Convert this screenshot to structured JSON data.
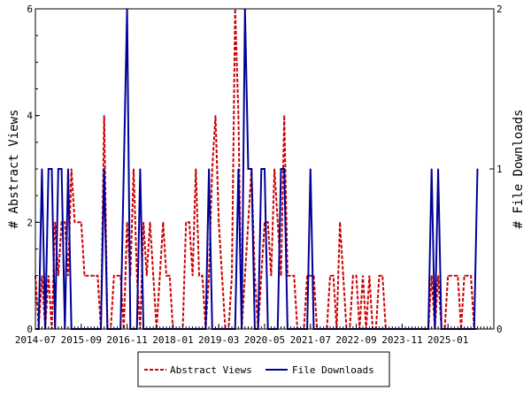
{
  "chart_data": {
    "type": "line",
    "ylabel_left": "# Abstract Views",
    "ylabel_right": "# File Downloads",
    "ylim_left": [
      0,
      6
    ],
    "ylim_right": [
      0,
      2
    ],
    "yticks_left": [
      "0",
      "2",
      "4",
      "6"
    ],
    "yticks_right": [
      "0",
      "1",
      "2"
    ],
    "x_range": [
      "2014-07",
      "2026-03"
    ],
    "xtick_labels": [
      "2014-07",
      "2015-09",
      "2016-11",
      "2018-01",
      "2019-03",
      "2020-05",
      "2021-07",
      "2022-09",
      "2023-11",
      "2025-01"
    ],
    "grid": false,
    "legend_position": "bottom-center",
    "colors": {
      "abstract_views": "#cc0000",
      "file_downloads": "#000099"
    },
    "series": [
      {
        "name": "Abstract Views",
        "axis": "left",
        "style": "dashed",
        "points": [
          [
            "2014-07",
            1
          ],
          [
            "2014-08",
            0
          ],
          [
            "2014-09",
            1
          ],
          [
            "2014-10",
            0
          ],
          [
            "2014-11",
            1
          ],
          [
            "2014-12",
            0
          ],
          [
            "2015-01",
            2
          ],
          [
            "2015-02",
            1
          ],
          [
            "2015-03",
            2
          ],
          [
            "2015-04",
            2
          ],
          [
            "2015-05",
            1
          ],
          [
            "2015-06",
            3
          ],
          [
            "2015-07",
            2
          ],
          [
            "2015-08",
            2
          ],
          [
            "2015-09",
            2
          ],
          [
            "2015-10",
            1
          ],
          [
            "2015-11",
            1
          ],
          [
            "2015-12",
            1
          ],
          [
            "2016-01",
            1
          ],
          [
            "2016-02",
            1
          ],
          [
            "2016-03",
            0
          ],
          [
            "2016-04",
            4
          ],
          [
            "2016-05",
            0
          ],
          [
            "2016-06",
            0
          ],
          [
            "2016-07",
            1
          ],
          [
            "2016-08",
            1
          ],
          [
            "2016-09",
            1
          ],
          [
            "2016-10",
            0
          ],
          [
            "2016-11",
            2
          ],
          [
            "2016-12",
            1
          ],
          [
            "2017-01",
            3
          ],
          [
            "2017-02",
            1
          ],
          [
            "2017-03",
            0
          ],
          [
            "2017-04",
            2
          ],
          [
            "2017-05",
            1
          ],
          [
            "2017-06",
            2
          ],
          [
            "2017-07",
            1
          ],
          [
            "2017-08",
            0
          ],
          [
            "2017-09",
            1
          ],
          [
            "2017-10",
            2
          ],
          [
            "2017-11",
            1
          ],
          [
            "2017-12",
            1
          ],
          [
            "2018-01",
            0
          ],
          [
            "2018-02",
            0
          ],
          [
            "2018-03",
            0
          ],
          [
            "2018-04",
            0
          ],
          [
            "2018-05",
            2
          ],
          [
            "2018-06",
            2
          ],
          [
            "2018-07",
            1
          ],
          [
            "2018-08",
            3
          ],
          [
            "2018-09",
            1
          ],
          [
            "2018-10",
            1
          ],
          [
            "2018-11",
            0
          ],
          [
            "2018-12",
            1
          ],
          [
            "2019-01",
            3
          ],
          [
            "2019-02",
            4
          ],
          [
            "2019-03",
            2
          ],
          [
            "2019-04",
            1
          ],
          [
            "2019-05",
            0
          ],
          [
            "2019-06",
            0
          ],
          [
            "2019-07",
            1
          ],
          [
            "2019-08",
            6
          ],
          [
            "2019-09",
            4
          ],
          [
            "2019-10",
            0
          ],
          [
            "2019-11",
            1
          ],
          [
            "2019-12",
            2
          ],
          [
            "2020-01",
            3
          ],
          [
            "2020-02",
            1
          ],
          [
            "2020-03",
            0
          ],
          [
            "2020-04",
            1
          ],
          [
            "2020-05",
            2
          ],
          [
            "2020-06",
            2
          ],
          [
            "2020-07",
            1
          ],
          [
            "2020-08",
            3
          ],
          [
            "2020-09",
            2
          ],
          [
            "2020-10",
            1
          ],
          [
            "2020-11",
            4
          ],
          [
            "2020-12",
            1
          ],
          [
            "2021-01",
            1
          ],
          [
            "2021-02",
            1
          ],
          [
            "2021-03",
            0
          ],
          [
            "2021-04",
            0
          ],
          [
            "2021-05",
            0
          ],
          [
            "2021-06",
            1
          ],
          [
            "2021-07",
            1
          ],
          [
            "2021-08",
            1
          ],
          [
            "2021-09",
            0
          ],
          [
            "2021-10",
            0
          ],
          [
            "2021-11",
            0
          ],
          [
            "2021-12",
            0
          ],
          [
            "2022-01",
            1
          ],
          [
            "2022-02",
            1
          ],
          [
            "2022-03",
            0
          ],
          [
            "2022-04",
            2
          ],
          [
            "2022-05",
            1
          ],
          [
            "2022-06",
            0
          ],
          [
            "2022-07",
            0
          ],
          [
            "2022-08",
            1
          ],
          [
            "2022-09",
            1
          ],
          [
            "2022-10",
            0
          ],
          [
            "2022-11",
            1
          ],
          [
            "2022-12",
            0
          ],
          [
            "2023-01",
            1
          ],
          [
            "2023-02",
            0
          ],
          [
            "2023-03",
            0
          ],
          [
            "2023-04",
            1
          ],
          [
            "2023-05",
            1
          ],
          [
            "2023-06",
            0
          ],
          [
            "2023-07",
            0
          ],
          [
            "2023-08",
            0
          ],
          [
            "2023-09",
            0
          ],
          [
            "2023-10",
            0
          ],
          [
            "2023-11",
            0
          ],
          [
            "2023-12",
            0
          ],
          [
            "2024-01",
            0
          ],
          [
            "2024-02",
            0
          ],
          [
            "2024-03",
            0
          ],
          [
            "2024-04",
            0
          ],
          [
            "2024-05",
            0
          ],
          [
            "2024-06",
            0
          ],
          [
            "2024-07",
            0
          ],
          [
            "2024-08",
            1
          ],
          [
            "2024-09",
            0
          ],
          [
            "2024-10",
            1
          ],
          [
            "2024-11",
            0
          ],
          [
            "2024-12",
            0
          ],
          [
            "2025-01",
            1
          ],
          [
            "2025-02",
            1
          ],
          [
            "2025-03",
            1
          ],
          [
            "2025-04",
            1
          ],
          [
            "2025-05",
            0
          ],
          [
            "2025-06",
            1
          ],
          [
            "2025-07",
            1
          ],
          [
            "2025-08",
            1
          ],
          [
            "2025-09",
            0
          ],
          [
            "2025-10",
            0
          ]
        ]
      },
      {
        "name": "File Downloads",
        "axis": "right",
        "style": "solid",
        "points": [
          [
            "2014-07",
            0
          ],
          [
            "2014-08",
            0
          ],
          [
            "2014-09",
            1
          ],
          [
            "2014-10",
            0
          ],
          [
            "2014-11",
            1
          ],
          [
            "2014-12",
            1
          ],
          [
            "2015-01",
            0
          ],
          [
            "2015-02",
            1
          ],
          [
            "2015-03",
            1
          ],
          [
            "2015-04",
            0
          ],
          [
            "2015-05",
            1
          ],
          [
            "2015-06",
            0
          ],
          [
            "2015-07",
            0
          ],
          [
            "2015-08",
            0
          ],
          [
            "2015-09",
            0
          ],
          [
            "2015-10",
            0
          ],
          [
            "2015-11",
            0
          ],
          [
            "2015-12",
            0
          ],
          [
            "2016-01",
            0
          ],
          [
            "2016-02",
            0
          ],
          [
            "2016-03",
            0
          ],
          [
            "2016-04",
            1
          ],
          [
            "2016-05",
            0
          ],
          [
            "2016-06",
            0
          ],
          [
            "2016-07",
            0
          ],
          [
            "2016-08",
            0
          ],
          [
            "2016-09",
            0
          ],
          [
            "2016-10",
            1
          ],
          [
            "2016-11",
            2
          ],
          [
            "2016-12",
            0
          ],
          [
            "2017-01",
            0
          ],
          [
            "2017-02",
            0
          ],
          [
            "2017-03",
            1
          ],
          [
            "2017-04",
            0
          ],
          [
            "2017-05",
            0
          ],
          [
            "2017-06",
            0
          ],
          [
            "2017-07",
            0
          ],
          [
            "2017-08",
            0
          ],
          [
            "2017-09",
            0
          ],
          [
            "2017-10",
            0
          ],
          [
            "2017-11",
            0
          ],
          [
            "2017-12",
            0
          ],
          [
            "2018-01",
            0
          ],
          [
            "2018-02",
            0
          ],
          [
            "2018-03",
            0
          ],
          [
            "2018-04",
            0
          ],
          [
            "2018-05",
            0
          ],
          [
            "2018-06",
            0
          ],
          [
            "2018-07",
            0
          ],
          [
            "2018-08",
            0
          ],
          [
            "2018-09",
            0
          ],
          [
            "2018-10",
            0
          ],
          [
            "2018-11",
            0
          ],
          [
            "2018-12",
            1
          ],
          [
            "2019-01",
            0
          ],
          [
            "2019-02",
            0
          ],
          [
            "2019-03",
            0
          ],
          [
            "2019-04",
            0
          ],
          [
            "2019-05",
            0
          ],
          [
            "2019-06",
            0
          ],
          [
            "2019-07",
            0
          ],
          [
            "2019-08",
            0
          ],
          [
            "2019-09",
            1
          ],
          [
            "2019-10",
            0
          ],
          [
            "2019-11",
            2
          ],
          [
            "2019-12",
            1
          ],
          [
            "2020-01",
            1
          ],
          [
            "2020-02",
            0
          ],
          [
            "2020-03",
            0
          ],
          [
            "2020-04",
            1
          ],
          [
            "2020-05",
            1
          ],
          [
            "2020-06",
            0
          ],
          [
            "2020-07",
            0
          ],
          [
            "2020-08",
            0
          ],
          [
            "2020-09",
            0
          ],
          [
            "2020-10",
            1
          ],
          [
            "2020-11",
            1
          ],
          [
            "2020-12",
            0
          ],
          [
            "2021-01",
            0
          ],
          [
            "2021-02",
            0
          ],
          [
            "2021-03",
            0
          ],
          [
            "2021-04",
            0
          ],
          [
            "2021-05",
            0
          ],
          [
            "2021-06",
            0
          ],
          [
            "2021-07",
            1
          ],
          [
            "2021-08",
            0
          ],
          [
            "2021-09",
            0
          ],
          [
            "2021-10",
            0
          ],
          [
            "2021-11",
            0
          ],
          [
            "2021-12",
            0
          ],
          [
            "2022-01",
            0
          ],
          [
            "2022-02",
            0
          ],
          [
            "2022-03",
            0
          ],
          [
            "2022-04",
            0
          ],
          [
            "2022-05",
            0
          ],
          [
            "2022-06",
            0
          ],
          [
            "2022-07",
            0
          ],
          [
            "2022-08",
            0
          ],
          [
            "2022-09",
            0
          ],
          [
            "2022-10",
            0
          ],
          [
            "2022-11",
            0
          ],
          [
            "2022-12",
            0
          ],
          [
            "2023-01",
            0
          ],
          [
            "2023-02",
            0
          ],
          [
            "2023-03",
            0
          ],
          [
            "2023-04",
            0
          ],
          [
            "2023-05",
            0
          ],
          [
            "2023-06",
            0
          ],
          [
            "2023-07",
            0
          ],
          [
            "2023-08",
            0
          ],
          [
            "2023-09",
            0
          ],
          [
            "2023-10",
            0
          ],
          [
            "2023-11",
            0
          ],
          [
            "2023-12",
            0
          ],
          [
            "2024-01",
            0
          ],
          [
            "2024-02",
            0
          ],
          [
            "2024-03",
            0
          ],
          [
            "2024-04",
            0
          ],
          [
            "2024-05",
            0
          ],
          [
            "2024-06",
            0
          ],
          [
            "2024-07",
            0
          ],
          [
            "2024-08",
            1
          ],
          [
            "2024-09",
            0
          ],
          [
            "2024-10",
            1
          ],
          [
            "2024-11",
            0
          ],
          [
            "2024-12",
            0
          ],
          [
            "2025-01",
            0
          ],
          [
            "2025-02",
            0
          ],
          [
            "2025-03",
            0
          ],
          [
            "2025-04",
            0
          ],
          [
            "2025-05",
            0
          ],
          [
            "2025-06",
            0
          ],
          [
            "2025-07",
            0
          ],
          [
            "2025-08",
            0
          ],
          [
            "2025-09",
            0
          ],
          [
            "2025-10",
            1
          ]
        ]
      }
    ]
  }
}
